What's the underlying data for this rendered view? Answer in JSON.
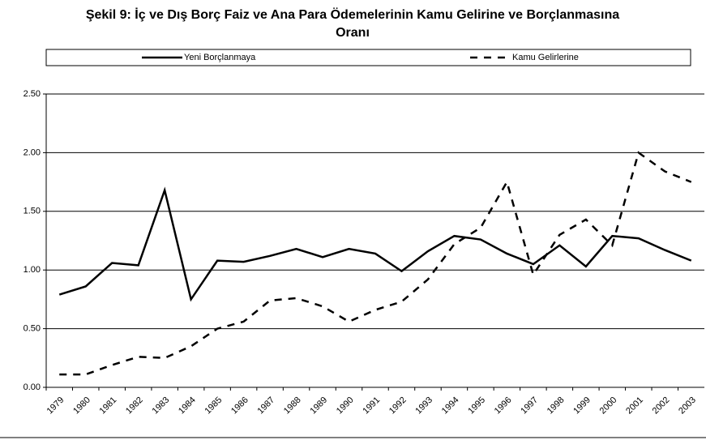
{
  "chart_data": {
    "type": "line",
    "title": "Şekil 9: İç ve Dış Borç Faiz ve Ana Para Ödemelerinin Kamu Gelirine ve Borçlanmasına Oranı",
    "categories": [
      "1979",
      "1980",
      "1981",
      "1982",
      "1983",
      "1984",
      "1985",
      "1986",
      "1987",
      "1988",
      "1989",
      "1990",
      "1991",
      "1992",
      "1993",
      "1994",
      "1995",
      "1996",
      "1997",
      "1998",
      "1999",
      "2000",
      "2001",
      "2002",
      "2003"
    ],
    "series": [
      {
        "name": "Yeni Borçlanmaya",
        "color": "#000000",
        "line_style": "solid",
        "values": [
          0.79,
          0.86,
          1.06,
          1.04,
          1.68,
          0.75,
          1.08,
          1.07,
          1.12,
          1.18,
          1.11,
          1.18,
          1.14,
          0.99,
          1.16,
          1.29,
          1.26,
          1.14,
          1.05,
          1.21,
          1.03,
          1.29,
          1.27,
          1.17,
          1.08
        ]
      },
      {
        "name": "Kamu Gelirlerine",
        "color": "#000000",
        "line_style": "dashed",
        "values": [
          0.11,
          0.11,
          0.19,
          0.26,
          0.25,
          0.35,
          0.5,
          0.56,
          0.74,
          0.76,
          0.69,
          0.56,
          0.66,
          0.73,
          0.92,
          1.22,
          1.36,
          1.75,
          0.96,
          1.3,
          1.43,
          1.21,
          2.0,
          1.84,
          1.75
        ]
      }
    ],
    "ylim": [
      0,
      2.5
    ],
    "yticks": [
      {
        "value": 0,
        "label": "0.00"
      },
      {
        "value": 0.5,
        "label": "0.50"
      },
      {
        "value": 1,
        "label": "1.00"
      },
      {
        "value": 1.5,
        "label": "1.50"
      },
      {
        "value": 2,
        "label": "2.00"
      },
      {
        "value": 2.5,
        "label": "2.50"
      }
    ],
    "grid": true,
    "legend": "top"
  }
}
